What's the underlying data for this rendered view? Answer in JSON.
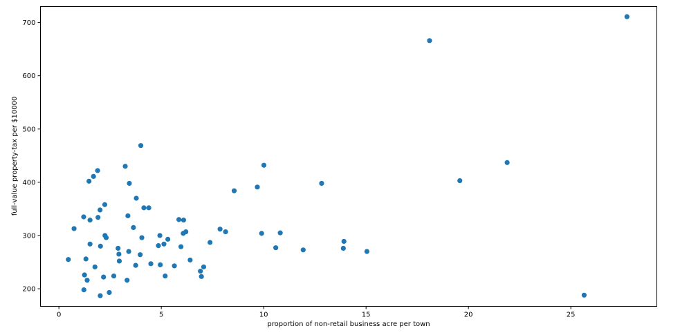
{
  "chart_data": {
    "type": "scatter",
    "title": "",
    "xlabel": "proportion of non-retail business acre per town",
    "ylabel": "full-value property-tax per $10000",
    "xlim": [
      -0.9,
      29.2
    ],
    "ylim": [
      167,
      730
    ],
    "xticks": [
      0,
      5,
      10,
      15,
      20,
      25
    ],
    "yticks": [
      200,
      300,
      400,
      500,
      600,
      700
    ],
    "grid": false,
    "legend": "none",
    "marker_color": "#1f77b4",
    "points": [
      [
        0.46,
        255
      ],
      [
        0.74,
        313
      ],
      [
        1.21,
        335
      ],
      [
        1.22,
        198
      ],
      [
        1.25,
        226
      ],
      [
        1.32,
        256
      ],
      [
        1.38,
        216
      ],
      [
        1.47,
        402
      ],
      [
        1.52,
        284
      ],
      [
        1.52,
        329
      ],
      [
        1.69,
        411
      ],
      [
        1.76,
        241
      ],
      [
        1.89,
        422
      ],
      [
        1.91,
        334
      ],
      [
        2.01,
        348
      ],
      [
        2.02,
        187
      ],
      [
        2.03,
        280
      ],
      [
        2.18,
        222
      ],
      [
        2.24,
        358
      ],
      [
        2.25,
        300
      ],
      [
        2.31,
        296
      ],
      [
        2.46,
        193
      ],
      [
        2.68,
        224
      ],
      [
        2.89,
        276
      ],
      [
        2.93,
        265
      ],
      [
        2.95,
        252
      ],
      [
        3.24,
        430
      ],
      [
        3.33,
        216
      ],
      [
        3.37,
        337
      ],
      [
        3.41,
        270
      ],
      [
        3.44,
        398
      ],
      [
        3.64,
        315
      ],
      [
        3.75,
        244
      ],
      [
        3.78,
        370
      ],
      [
        3.97,
        264
      ],
      [
        4.0,
        469
      ],
      [
        4.05,
        296
      ],
      [
        4.15,
        352
      ],
      [
        4.39,
        352
      ],
      [
        4.49,
        247
      ],
      [
        4.86,
        281
      ],
      [
        4.93,
        300
      ],
      [
        4.95,
        245
      ],
      [
        5.13,
        284
      ],
      [
        5.19,
        224
      ],
      [
        5.32,
        293
      ],
      [
        5.64,
        243
      ],
      [
        5.86,
        330
      ],
      [
        5.96,
        279
      ],
      [
        6.07,
        304
      ],
      [
        6.09,
        329
      ],
      [
        6.2,
        307
      ],
      [
        6.41,
        254
      ],
      [
        6.91,
        233
      ],
      [
        6.96,
        223
      ],
      [
        7.07,
        241
      ],
      [
        7.38,
        287
      ],
      [
        7.87,
        312
      ],
      [
        8.14,
        307
      ],
      [
        8.56,
        384
      ],
      [
        9.69,
        391
      ],
      [
        9.9,
        304
      ],
      [
        10.01,
        432
      ],
      [
        10.59,
        277
      ],
      [
        10.81,
        305
      ],
      [
        11.93,
        273
      ],
      [
        12.83,
        398
      ],
      [
        13.89,
        276
      ],
      [
        13.92,
        289
      ],
      [
        15.04,
        270
      ],
      [
        18.1,
        666
      ],
      [
        19.58,
        403
      ],
      [
        21.89,
        437
      ],
      [
        25.65,
        188
      ],
      [
        27.74,
        711
      ]
    ]
  }
}
